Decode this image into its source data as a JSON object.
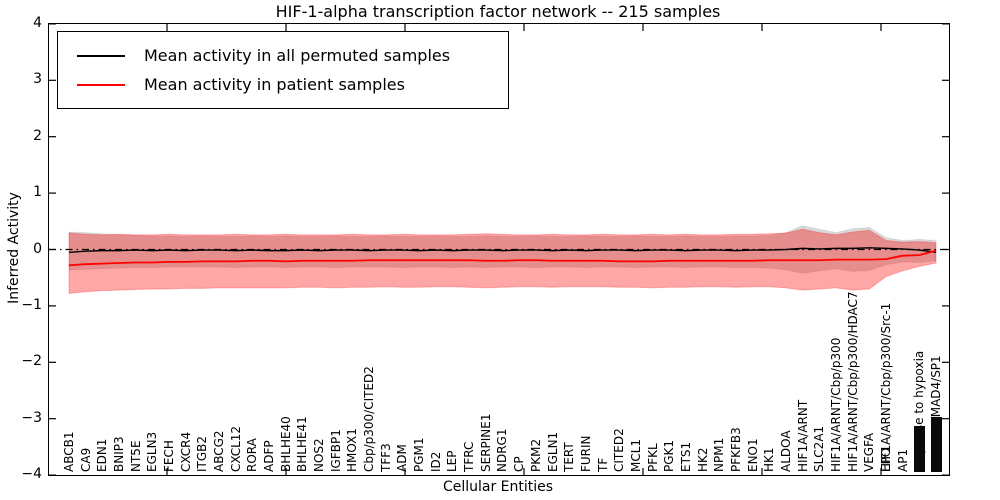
{
  "title": "HIF-1-alpha transcription factor network -- 215 samples",
  "xlabel": "Cellular Entities",
  "ylabel": "Inferred Activity",
  "legend": {
    "entries": [
      {
        "label": "Mean activity in all permuted samples",
        "color": "#000000"
      },
      {
        "label": "Mean activity in patient samples",
        "color": "#ff0000"
      }
    ]
  },
  "colors": {
    "patient_line": "#ff0000",
    "permuted_line": "#000000",
    "patient_band": "rgba(255,0,0,0.35)",
    "permuted_band": "rgba(0,0,0,0.15)",
    "spine": "#000000"
  },
  "chart_data": {
    "type": "line",
    "title": "HIF-1-alpha transcription factor network -- 215 samples",
    "xlabel": "Cellular Entities",
    "ylabel": "Inferred Activity",
    "ylim": [
      -4,
      4
    ],
    "grid": false,
    "legend_position": "upper left",
    "zero_line": {
      "y": 0,
      "style": "dash-dot",
      "color": "#000000"
    },
    "ytick_values": [
      4,
      3,
      2,
      1,
      0,
      -1,
      -2,
      -3,
      -4
    ],
    "ytick_labels": [
      "4",
      "3",
      "2",
      "1",
      "0",
      "−1",
      "−2",
      "−3",
      "−4"
    ],
    "categories": [
      {
        "i": 0,
        "label": "ABCB1"
      },
      {
        "i": 1,
        "label": "CA9"
      },
      {
        "i": 2,
        "label": "EDN1"
      },
      {
        "i": 3,
        "label": "BNIP3"
      },
      {
        "i": 4,
        "label": "NT5E"
      },
      {
        "i": 5,
        "label": "EGLN3"
      },
      {
        "i": 6,
        "label": "FECH"
      },
      {
        "i": 7,
        "label": "CXCR4"
      },
      {
        "i": 8,
        "label": "ITGB2"
      },
      {
        "i": 9,
        "label": "ABCG2"
      },
      {
        "i": 10,
        "label": "CXCL12"
      },
      {
        "i": 11,
        "label": "RORA"
      },
      {
        "i": 12,
        "label": "ADFP"
      },
      {
        "i": 13,
        "label": "BHLHE40"
      },
      {
        "i": 14,
        "label": "BHLHE41"
      },
      {
        "i": 15,
        "label": "NOS2"
      },
      {
        "i": 16,
        "label": "IGFBP1"
      },
      {
        "i": 17,
        "label": "HMOX1"
      },
      {
        "i": 18,
        "label": "Cbp/p300/CITED2"
      },
      {
        "i": 19,
        "label": "TFF3"
      },
      {
        "i": 20,
        "label": "ADM"
      },
      {
        "i": 21,
        "label": "PGM1"
      },
      {
        "i": 22,
        "label": "ID2"
      },
      {
        "i": 23,
        "label": "LEP"
      },
      {
        "i": 24,
        "label": "TFRC"
      },
      {
        "i": 25,
        "label": "SERPINE1"
      },
      {
        "i": 26,
        "label": "NDRG1"
      },
      {
        "i": 27,
        "label": "CP"
      },
      {
        "i": 28,
        "label": "PKM2"
      },
      {
        "i": 29,
        "label": "EGLN1"
      },
      {
        "i": 30,
        "label": "TERT"
      },
      {
        "i": 31,
        "label": "FURIN"
      },
      {
        "i": 32,
        "label": "TF"
      },
      {
        "i": 33,
        "label": "CITED2"
      },
      {
        "i": 34,
        "label": "MCL1"
      },
      {
        "i": 35,
        "label": "PFKL"
      },
      {
        "i": 36,
        "label": "PGK1"
      },
      {
        "i": 37,
        "label": "ETS1"
      },
      {
        "i": 38,
        "label": "HK2"
      },
      {
        "i": 39,
        "label": "NPM1"
      },
      {
        "i": 40,
        "label": "PFKFB3"
      },
      {
        "i": 41,
        "label": "ENO1"
      },
      {
        "i": 42,
        "label": "HK1"
      },
      {
        "i": 43,
        "label": "ALDOA"
      },
      {
        "i": 44,
        "label": "HIF1A/ARNT"
      },
      {
        "i": 45,
        "label": "SLC2A1"
      },
      {
        "i": 46,
        "label": "HIF1A/ARNT/Cbp/p300"
      },
      {
        "i": 47,
        "label": "HIF1A/ARNT/Cbp/p300/HDAC7"
      },
      {
        "i": 48,
        "label": "VEGFA"
      },
      {
        "i": 49,
        "label": "HIF1A/ARNT/Cbp/p300/Src-1"
      },
      {
        "i": 49,
        "label": "EPO"
      },
      {
        "i": 50,
        "label": "AP1"
      },
      {
        "i": 51,
        "label": "response to hypoxia",
        "illegible_overlap": true
      },
      {
        "i": 52,
        "label": "SMAD3/SMAD4/SP1",
        "illegible_overlap": true
      }
    ],
    "series": [
      {
        "name": "Mean activity in all permuted samples",
        "color": "#000000",
        "values": [
          -0.05,
          -0.03,
          -0.02,
          -0.02,
          -0.01,
          -0.02,
          -0.01,
          -0.02,
          -0.01,
          -0.01,
          -0.02,
          -0.01,
          -0.02,
          -0.02,
          -0.01,
          -0.02,
          -0.01,
          -0.01,
          -0.02,
          -0.01,
          -0.01,
          -0.02,
          -0.01,
          -0.02,
          -0.01,
          -0.01,
          -0.02,
          -0.01,
          -0.01,
          -0.02,
          -0.01,
          -0.02,
          -0.01,
          -0.01,
          -0.02,
          -0.01,
          -0.01,
          -0.02,
          -0.01,
          -0.01,
          -0.02,
          -0.01,
          -0.01,
          0.0,
          0.02,
          0.01,
          0.02,
          0.02,
          0.03,
          0.02,
          0.01,
          -0.01,
          -0.05
        ]
      },
      {
        "name": "Mean activity in patient samples",
        "color": "#ff0000",
        "values": [
          -0.28,
          -0.26,
          -0.25,
          -0.24,
          -0.23,
          -0.23,
          -0.22,
          -0.22,
          -0.21,
          -0.21,
          -0.21,
          -0.2,
          -0.2,
          -0.21,
          -0.2,
          -0.2,
          -0.2,
          -0.2,
          -0.19,
          -0.19,
          -0.19,
          -0.19,
          -0.19,
          -0.19,
          -0.19,
          -0.2,
          -0.2,
          -0.19,
          -0.19,
          -0.2,
          -0.2,
          -0.2,
          -0.2,
          -0.21,
          -0.21,
          -0.21,
          -0.2,
          -0.2,
          -0.2,
          -0.2,
          -0.2,
          -0.2,
          -0.19,
          -0.19,
          -0.19,
          -0.19,
          -0.18,
          -0.18,
          -0.18,
          -0.17,
          -0.11,
          -0.1,
          -0.02
        ]
      }
    ],
    "bands": [
      {
        "name": "permuted samples range",
        "fill": "rgba(0,0,0,0.15)",
        "upper": [
          0.31,
          0.3,
          0.28,
          0.26,
          0.25,
          0.24,
          0.24,
          0.23,
          0.24,
          0.23,
          0.23,
          0.24,
          0.23,
          0.24,
          0.23,
          0.23,
          0.24,
          0.23,
          0.23,
          0.24,
          0.23,
          0.23,
          0.24,
          0.23,
          0.23,
          0.24,
          0.23,
          0.23,
          0.24,
          0.23,
          0.23,
          0.24,
          0.23,
          0.23,
          0.24,
          0.23,
          0.23,
          0.24,
          0.23,
          0.23,
          0.24,
          0.24,
          0.25,
          0.3,
          0.42,
          0.36,
          0.3,
          0.37,
          0.39,
          0.21,
          0.16,
          0.18,
          0.16
        ],
        "lower": [
          -0.36,
          -0.35,
          -0.34,
          -0.33,
          -0.32,
          -0.32,
          -0.31,
          -0.31,
          -0.31,
          -0.31,
          -0.32,
          -0.31,
          -0.31,
          -0.32,
          -0.31,
          -0.31,
          -0.32,
          -0.31,
          -0.31,
          -0.31,
          -0.32,
          -0.31,
          -0.31,
          -0.32,
          -0.31,
          -0.32,
          -0.31,
          -0.31,
          -0.32,
          -0.31,
          -0.31,
          -0.32,
          -0.31,
          -0.31,
          -0.32,
          -0.31,
          -0.31,
          -0.32,
          -0.31,
          -0.31,
          -0.32,
          -0.32,
          -0.33,
          -0.36,
          -0.42,
          -0.38,
          -0.34,
          -0.39,
          -0.37,
          -0.27,
          -0.22,
          -0.23,
          -0.2
        ]
      },
      {
        "name": "patient samples range",
        "fill": "rgba(255,0,0,0.35)",
        "upper": [
          0.29,
          0.27,
          0.26,
          0.27,
          0.26,
          0.26,
          0.27,
          0.26,
          0.26,
          0.26,
          0.27,
          0.26,
          0.26,
          0.27,
          0.26,
          0.26,
          0.26,
          0.27,
          0.26,
          0.26,
          0.27,
          0.26,
          0.26,
          0.26,
          0.27,
          0.28,
          0.27,
          0.26,
          0.26,
          0.27,
          0.26,
          0.26,
          0.27,
          0.26,
          0.26,
          0.27,
          0.26,
          0.27,
          0.26,
          0.26,
          0.27,
          0.27,
          0.28,
          0.29,
          0.36,
          0.3,
          0.26,
          0.31,
          0.34,
          0.16,
          0.13,
          0.14,
          0.12
        ],
        "lower": [
          -0.78,
          -0.75,
          -0.73,
          -0.72,
          -0.71,
          -0.7,
          -0.7,
          -0.69,
          -0.69,
          -0.68,
          -0.68,
          -0.68,
          -0.68,
          -0.68,
          -0.67,
          -0.67,
          -0.68,
          -0.67,
          -0.67,
          -0.66,
          -0.67,
          -0.67,
          -0.66,
          -0.66,
          -0.67,
          -0.68,
          -0.67,
          -0.66,
          -0.66,
          -0.67,
          -0.66,
          -0.66,
          -0.66,
          -0.67,
          -0.67,
          -0.68,
          -0.67,
          -0.67,
          -0.66,
          -0.66,
          -0.67,
          -0.66,
          -0.66,
          -0.68,
          -0.72,
          -0.7,
          -0.68,
          -0.72,
          -0.7,
          -0.48,
          -0.38,
          -0.3,
          -0.24
        ]
      }
    ]
  }
}
